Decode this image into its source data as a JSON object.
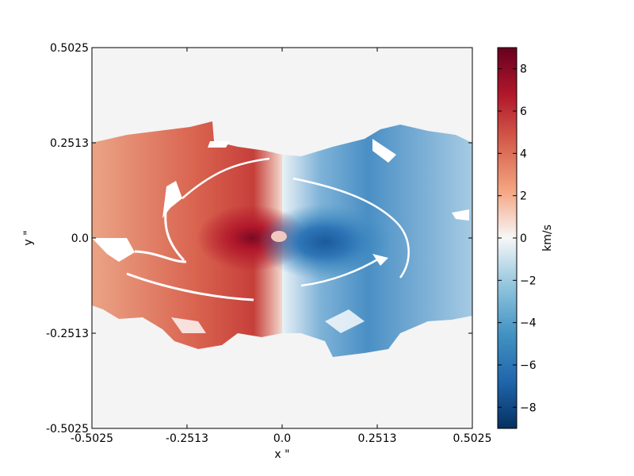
{
  "chart_data": {
    "type": "heatmap",
    "title": "",
    "xlabel": "x \"",
    "ylabel": "y \"",
    "xlim": [
      -0.5025,
      0.5025
    ],
    "ylim": [
      -0.5025,
      0.5025
    ],
    "x_ticks": [
      -0.5025,
      -0.2513,
      0.0,
      0.2513,
      0.5025
    ],
    "x_tick_labels": [
      "-0.5025",
      "-0.2513",
      "0.0",
      "0.2513",
      "0.5025"
    ],
    "y_ticks": [
      -0.5025,
      -0.2513,
      0.0,
      0.2513,
      0.5025
    ],
    "y_tick_labels": [
      "-0.5025",
      "-0.2513",
      "0.0",
      "0.2513",
      "0.5025"
    ],
    "background_color": "#f4f4f4",
    "colormap": "RdBu_r",
    "colorbar": {
      "label": "km/s",
      "range": [
        -9,
        9
      ],
      "ticks": [
        8,
        6,
        4,
        2,
        0,
        -2,
        -4,
        -6,
        -8
      ],
      "tick_labels": [
        "8",
        "6",
        "4",
        "2",
        "0",
        "−2",
        "−4",
        "−6",
        "−8"
      ],
      "stops": [
        {
          "v": 9,
          "color": "#67001f"
        },
        {
          "v": 6.75,
          "color": "#b2182b"
        },
        {
          "v": 4.5,
          "color": "#d6604d"
        },
        {
          "v": 2.25,
          "color": "#f4a582"
        },
        {
          "v": 0,
          "color": "#f7f7f7"
        },
        {
          "v": -2.25,
          "color": "#92c5de"
        },
        {
          "v": -4.5,
          "color": "#4393c3"
        },
        {
          "v": -6.75,
          "color": "#2166ac"
        },
        {
          "v": -9,
          "color": "#053061"
        }
      ]
    },
    "velocity_field": {
      "description_units": "km/s",
      "extent_x": [
        -0.5025,
        0.5025
      ],
      "extent_y": [
        -0.4,
        0.3
      ],
      "peak_positive": 8.5,
      "peak_positive_xy": [
        -0.06,
        0.0
      ],
      "peak_negative": -6.5,
      "peak_negative_xy": [
        0.12,
        -0.02
      ]
    }
  }
}
